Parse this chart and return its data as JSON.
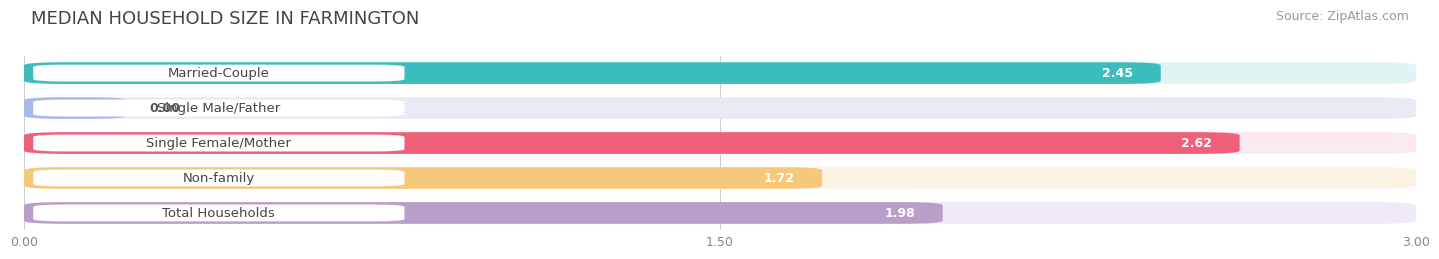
{
  "title": "MEDIAN HOUSEHOLD SIZE IN FARMINGTON",
  "source": "Source: ZipAtlas.com",
  "categories": [
    "Married-Couple",
    "Single Male/Father",
    "Single Female/Mother",
    "Non-family",
    "Total Households"
  ],
  "values": [
    2.45,
    0.0,
    2.62,
    1.72,
    1.98
  ],
  "bar_colors": [
    "#3dbcbe",
    "#a8b8e8",
    "#f0607a",
    "#f5c87a",
    "#b89ec8"
  ],
  "bar_bg_colors": [
    "#e0f4f4",
    "#e8eaf6",
    "#fce8ef",
    "#fdf3e3",
    "#f0eaf5"
  ],
  "label_text_colors": [
    "#555555",
    "#555555",
    "#555555",
    "#555555",
    "#555555"
  ],
  "value_colors_inside": [
    "white",
    "white",
    "white",
    "white",
    "white"
  ],
  "xlim": [
    0,
    3.0
  ],
  "xticks": [
    0.0,
    1.5,
    3.0
  ],
  "xticklabels": [
    "0.00",
    "1.50",
    "3.00"
  ],
  "title_fontsize": 13,
  "source_fontsize": 9,
  "label_fontsize": 9.5,
  "value_fontsize": 9,
  "background_color": "#ffffff",
  "bar_bg_overall": "#f0f0f0"
}
